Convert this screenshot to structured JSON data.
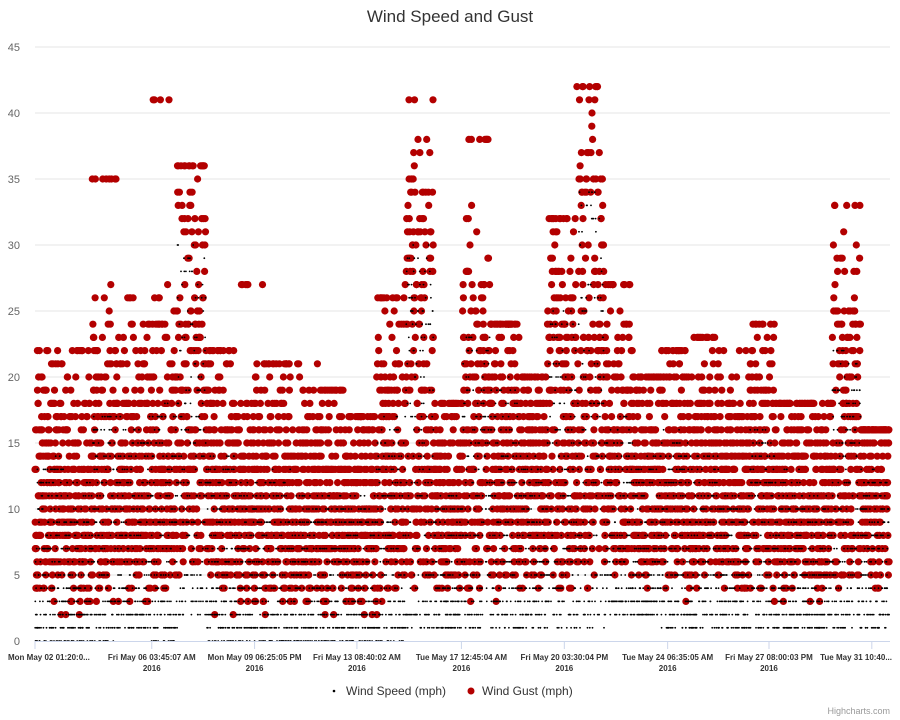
{
  "chart_data": {
    "type": "scatter",
    "title": "Wind Speed and Gust",
    "ylim": [
      0,
      45
    ],
    "y_ticks": [
      "0",
      "5",
      "10",
      "15",
      "20",
      "25",
      "30",
      "35",
      "40",
      "45"
    ],
    "x_range": [
      "2016-05-02 01:20",
      "2016-06-01 02:00"
    ],
    "x_ticks": [
      {
        "at": "2016-05-02 01:20",
        "line1": "Mon May 02 01:20:0...",
        "line2": ""
      },
      {
        "at": "2016-05-06 03:45",
        "line1": "Fri May 06 03:45:07 AM",
        "line2": "2016"
      },
      {
        "at": "2016-05-09 18:25",
        "line1": "Mon May 09 06:25:05 PM",
        "line2": "2016"
      },
      {
        "at": "2016-05-13 08:40",
        "line1": "Fri May 13 08:40:02 AM",
        "line2": "2016"
      },
      {
        "at": "2016-05-17 00:45",
        "line1": "Tue May 17 12:45:04 AM",
        "line2": "2016"
      },
      {
        "at": "2016-05-20 15:30",
        "line1": "Fri May 20 03:30:04 PM",
        "line2": "2016"
      },
      {
        "at": "2016-05-24 06:35",
        "line1": "Tue May 24 06:35:05 AM",
        "line2": "2016"
      },
      {
        "at": "2016-05-27 20:00",
        "line1": "Fri May 27 08:00:03 PM",
        "line2": "2016"
      },
      {
        "at": "2016-05-31 10:40",
        "line1": "Tue May 31 10:40...",
        "line2": ""
      }
    ],
    "grid": true,
    "legend_position": "bottom-center",
    "series": [
      {
        "name": "Wind Speed (mph)",
        "color": "#000000",
        "marker": "small-dot",
        "summary_levels": [
          {
            "date": "2016-05-02",
            "min": 0,
            "max": 14
          },
          {
            "date": "2016-05-03",
            "min": 0,
            "max": 12
          },
          {
            "date": "2016-05-04",
            "min": 0,
            "max": 17
          },
          {
            "date": "2016-05-05",
            "min": 1,
            "max": 16
          },
          {
            "date": "2016-05-06",
            "min": 0,
            "max": 18
          },
          {
            "date": "2016-05-07",
            "min": 2,
            "max": 30
          },
          {
            "date": "2016-05-08",
            "min": 0,
            "max": 14
          },
          {
            "date": "2016-05-09",
            "min": 0,
            "max": 12
          },
          {
            "date": "2016-05-10",
            "min": 0,
            "max": 13
          },
          {
            "date": "2016-05-11",
            "min": 0,
            "max": 11
          },
          {
            "date": "2016-05-12",
            "min": 0,
            "max": 11
          },
          {
            "date": "2016-05-13",
            "min": 0,
            "max": 11
          },
          {
            "date": "2016-05-14",
            "min": 0,
            "max": 17
          },
          {
            "date": "2016-05-15",
            "min": 1,
            "max": 30
          },
          {
            "date": "2016-05-16",
            "min": 1,
            "max": 11
          },
          {
            "date": "2016-05-17",
            "min": 1,
            "max": 23
          },
          {
            "date": "2016-05-18",
            "min": 1,
            "max": 20
          },
          {
            "date": "2016-05-19",
            "min": 1,
            "max": 14
          },
          {
            "date": "2016-05-20",
            "min": 1,
            "max": 25
          },
          {
            "date": "2016-05-21",
            "min": 1,
            "max": 34
          },
          {
            "date": "2016-05-22",
            "min": 2,
            "max": 17
          },
          {
            "date": "2016-05-23",
            "min": 2,
            "max": 14
          },
          {
            "date": "2016-05-24",
            "min": 1,
            "max": 16
          },
          {
            "date": "2016-05-25",
            "min": 1,
            "max": 14
          },
          {
            "date": "2016-05-26",
            "min": 1,
            "max": 11
          },
          {
            "date": "2016-05-27",
            "min": 1,
            "max": 16
          },
          {
            "date": "2016-05-28",
            "min": 1,
            "max": 13
          },
          {
            "date": "2016-05-29",
            "min": 1,
            "max": 11
          },
          {
            "date": "2016-05-30",
            "min": 1,
            "max": 22
          },
          {
            "date": "2016-05-31",
            "min": 1,
            "max": 13
          }
        ]
      },
      {
        "name": "Wind Gust (mph)",
        "color": "#b30000",
        "marker": "circle",
        "summary_levels": [
          {
            "date": "2016-05-02",
            "min": 0,
            "max": 22
          },
          {
            "date": "2016-05-03",
            "min": 0,
            "max": 22
          },
          {
            "date": "2016-05-04",
            "min": 2,
            "max": 35
          },
          {
            "date": "2016-05-05",
            "min": 3,
            "max": 26
          },
          {
            "date": "2016-05-06",
            "min": 2,
            "max": 41
          },
          {
            "date": "2016-05-07",
            "min": 4,
            "max": 36
          },
          {
            "date": "2016-05-08",
            "min": 0,
            "max": 22
          },
          {
            "date": "2016-05-09",
            "min": 0,
            "max": 27
          },
          {
            "date": "2016-05-10",
            "min": 1,
            "max": 21
          },
          {
            "date": "2016-05-11",
            "min": 0,
            "max": 21
          },
          {
            "date": "2016-05-12",
            "min": 0,
            "max": 19
          },
          {
            "date": "2016-05-13",
            "min": 0,
            "max": 17
          },
          {
            "date": "2016-05-14",
            "min": 2,
            "max": 26
          },
          {
            "date": "2016-05-15",
            "min": 3,
            "max": 41
          },
          {
            "date": "2016-05-16",
            "min": 3,
            "max": 18
          },
          {
            "date": "2016-05-17",
            "min": 3,
            "max": 38
          },
          {
            "date": "2016-05-18",
            "min": 3,
            "max": 24
          },
          {
            "date": "2016-05-19",
            "min": 3,
            "max": 20
          },
          {
            "date": "2016-05-20",
            "min": 3,
            "max": 32
          },
          {
            "date": "2016-05-21",
            "min": 4,
            "max": 42
          },
          {
            "date": "2016-05-22",
            "min": 3,
            "max": 27
          },
          {
            "date": "2016-05-23",
            "min": 3,
            "max": 20
          },
          {
            "date": "2016-05-24",
            "min": 2,
            "max": 22
          },
          {
            "date": "2016-05-25",
            "min": 2,
            "max": 23
          },
          {
            "date": "2016-05-26",
            "min": 2,
            "max": 22
          },
          {
            "date": "2016-05-27",
            "min": 0,
            "max": 24
          },
          {
            "date": "2016-05-28",
            "min": 2,
            "max": 18
          },
          {
            "date": "2016-05-29",
            "min": 2,
            "max": 18
          },
          {
            "date": "2016-05-30",
            "min": 1,
            "max": 33
          },
          {
            "date": "2016-05-31",
            "min": 2,
            "max": 16
          }
        ]
      }
    ]
  },
  "legend": {
    "wind_speed_label": "Wind Speed (mph)",
    "wind_gust_label": "Wind Gust (mph)"
  },
  "credits": "Highcharts.com",
  "colors": {
    "speed": "#000000",
    "gust": "#b30000",
    "grid": "#e6e6e6",
    "axis": "#ccd6eb"
  }
}
